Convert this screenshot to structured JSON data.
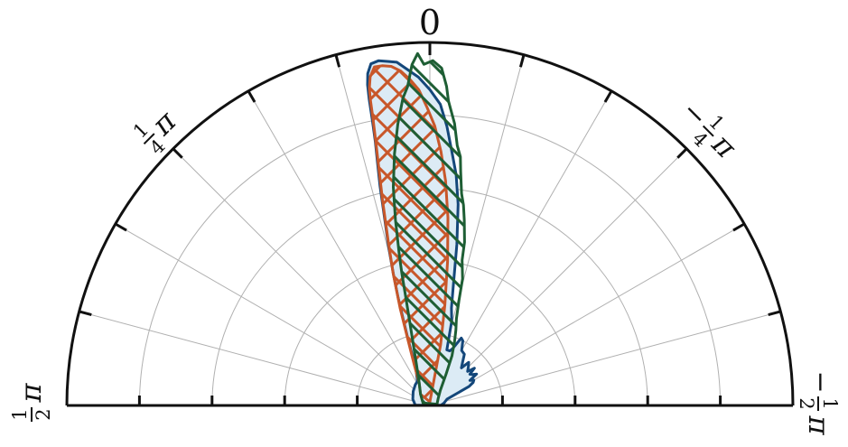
{
  "chart_data": {
    "type": "polar-area",
    "title": "",
    "angle_range": [
      "-pi/2",
      "pi/2"
    ],
    "zero_direction": "top",
    "angle_ticks": [
      {
        "label": "0",
        "theta": 0
      },
      {
        "label": "1/4 π",
        "theta": 0.7854,
        "num": "1",
        "den": "4"
      },
      {
        "label": "−1/4 π",
        "theta": -0.7854,
        "num": "1",
        "den": "4",
        "sign": "−"
      },
      {
        "label": "1/2 π",
        "theta": 1.5708,
        "num": "1",
        "den": "2"
      },
      {
        "label": "−1/2 π",
        "theta": -1.5708,
        "num": "1",
        "den": "2",
        "sign": "−"
      }
    ],
    "radial_gridlines": [
      0.2,
      0.4,
      0.6,
      0.8
    ],
    "rmax": 1.0,
    "angular_gridlines_deg": [
      -75,
      -60,
      -45,
      -30,
      -15,
      0,
      15,
      30,
      45,
      60,
      75
    ],
    "grid": true,
    "legend": "none",
    "colors": {
      "blue": "#14477a",
      "orange": "#c8572a",
      "green": "#1e5e34",
      "fill_blue": "#dcebf5",
      "axis": "#111111",
      "grid": "#b0b0b0"
    },
    "series": [
      {
        "color": "blue",
        "style": "filled",
        "points": [
          [
            -89.0,
            0.03
          ],
          [
            -80.0,
            0.04
          ],
          [
            -70.0,
            0.05
          ],
          [
            -64.0,
            0.12
          ],
          [
            -62.0,
            0.135
          ],
          [
            -60.0,
            0.14
          ],
          [
            -58.0,
            0.13
          ],
          [
            -56.0,
            0.155
          ],
          [
            -54.0,
            0.145
          ],
          [
            -52.0,
            0.14
          ],
          [
            -50.0,
            0.16
          ],
          [
            -48.0,
            0.14
          ],
          [
            -45.0,
            0.15
          ],
          [
            -42.0,
            0.16
          ],
          [
            -40.0,
            0.135
          ],
          [
            -37.0,
            0.15
          ],
          [
            -34.0,
            0.17
          ],
          [
            -30.0,
            0.175
          ],
          [
            -27.0,
            0.2
          ],
          [
            -25.0,
            0.205
          ],
          [
            -22.0,
            0.17
          ],
          [
            -20.0,
            0.16
          ],
          [
            -17.0,
            0.16
          ],
          [
            -14.5,
            0.24
          ],
          [
            -12.5,
            0.275
          ],
          [
            -11.0,
            0.34
          ],
          [
            -9.5,
            0.45
          ],
          [
            -8.0,
            0.56
          ],
          [
            -6.5,
            0.64
          ],
          [
            -5.0,
            0.7
          ],
          [
            -3.5,
            0.77
          ],
          [
            -2.0,
            0.83
          ],
          [
            0.0,
            0.87
          ],
          [
            2.0,
            0.905
          ],
          [
            4.0,
            0.93
          ],
          [
            5.5,
            0.95
          ],
          [
            7.0,
            0.955
          ],
          [
            8.5,
            0.96
          ],
          [
            9.8,
            0.955
          ],
          [
            10.6,
            0.93
          ],
          [
            11.0,
            0.9
          ],
          [
            11.2,
            0.86
          ],
          [
            11.4,
            0.8
          ],
          [
            11.7,
            0.74
          ],
          [
            12.2,
            0.68
          ],
          [
            12.8,
            0.62
          ],
          [
            13.6,
            0.53
          ],
          [
            14.6,
            0.45
          ],
          [
            15.6,
            0.37
          ],
          [
            16.4,
            0.31
          ],
          [
            17.2,
            0.25
          ],
          [
            18.3,
            0.19
          ],
          [
            19.5,
            0.14
          ],
          [
            22.0,
            0.1
          ],
          [
            27.0,
            0.075
          ],
          [
            35.0,
            0.07
          ],
          [
            50.0,
            0.06
          ],
          [
            70.0,
            0.05
          ],
          [
            89.0,
            0.04
          ]
        ]
      },
      {
        "color": "orange",
        "style": "hatched-cross",
        "points": [
          [
            -10.0,
            0.17
          ],
          [
            -8.5,
            0.28
          ],
          [
            -7.0,
            0.4
          ],
          [
            -5.5,
            0.52
          ],
          [
            -4.0,
            0.62
          ],
          [
            -2.5,
            0.7
          ],
          [
            -1.0,
            0.77
          ],
          [
            0.5,
            0.82
          ],
          [
            2.0,
            0.87
          ],
          [
            3.5,
            0.9
          ],
          [
            5.0,
            0.925
          ],
          [
            6.5,
            0.94
          ],
          [
            8.0,
            0.945
          ],
          [
            9.3,
            0.945
          ],
          [
            10.3,
            0.92
          ],
          [
            10.8,
            0.89
          ],
          [
            11.0,
            0.86
          ],
          [
            11.2,
            0.81
          ],
          [
            11.6,
            0.74
          ],
          [
            12.2,
            0.66
          ],
          [
            13.0,
            0.58
          ],
          [
            14.2,
            0.47
          ],
          [
            15.5,
            0.38
          ],
          [
            17.0,
            0.28
          ],
          [
            18.5,
            0.19
          ],
          [
            21.0,
            0.12
          ],
          [
            25.0,
            0.07
          ],
          [
            40.0,
            0.04
          ],
          [
            0.0,
            0.01
          ]
        ]
      },
      {
        "color": "green",
        "style": "hatched-diagonal",
        "points": [
          [
            -80.0,
            0.02
          ],
          [
            -50.0,
            0.03
          ],
          [
            -35.0,
            0.05
          ],
          [
            -27.0,
            0.1
          ],
          [
            -24.0,
            0.15
          ],
          [
            -21.0,
            0.19
          ],
          [
            -19.0,
            0.22
          ],
          [
            -17.0,
            0.25
          ],
          [
            -15.5,
            0.3
          ],
          [
            -14.5,
            0.36
          ],
          [
            -12.5,
            0.41
          ],
          [
            -12.0,
            0.46
          ],
          [
            -10.5,
            0.52
          ],
          [
            -9.5,
            0.56
          ],
          [
            -8.5,
            0.59
          ],
          [
            -7.5,
            0.65
          ],
          [
            -7.0,
            0.69
          ],
          [
            -6.0,
            0.72
          ],
          [
            -5.0,
            0.78
          ],
          [
            -3.5,
            0.84
          ],
          [
            -3.0,
            0.88
          ],
          [
            -2.0,
            0.93
          ],
          [
            -0.5,
            0.95
          ],
          [
            1.0,
            0.94
          ],
          [
            2.0,
            0.97
          ],
          [
            3.0,
            0.94
          ],
          [
            4.0,
            0.88
          ],
          [
            5.0,
            0.85
          ],
          [
            6.5,
            0.78
          ],
          [
            8.0,
            0.7
          ],
          [
            9.5,
            0.61
          ],
          [
            10.5,
            0.52
          ],
          [
            11.5,
            0.42
          ],
          [
            12.0,
            0.37
          ],
          [
            12.5,
            0.31
          ],
          [
            13.5,
            0.24
          ],
          [
            15.0,
            0.18
          ],
          [
            18.0,
            0.12
          ],
          [
            25.0,
            0.07
          ],
          [
            40.0,
            0.04
          ],
          [
            70.0,
            0.02
          ]
        ]
      }
    ]
  }
}
